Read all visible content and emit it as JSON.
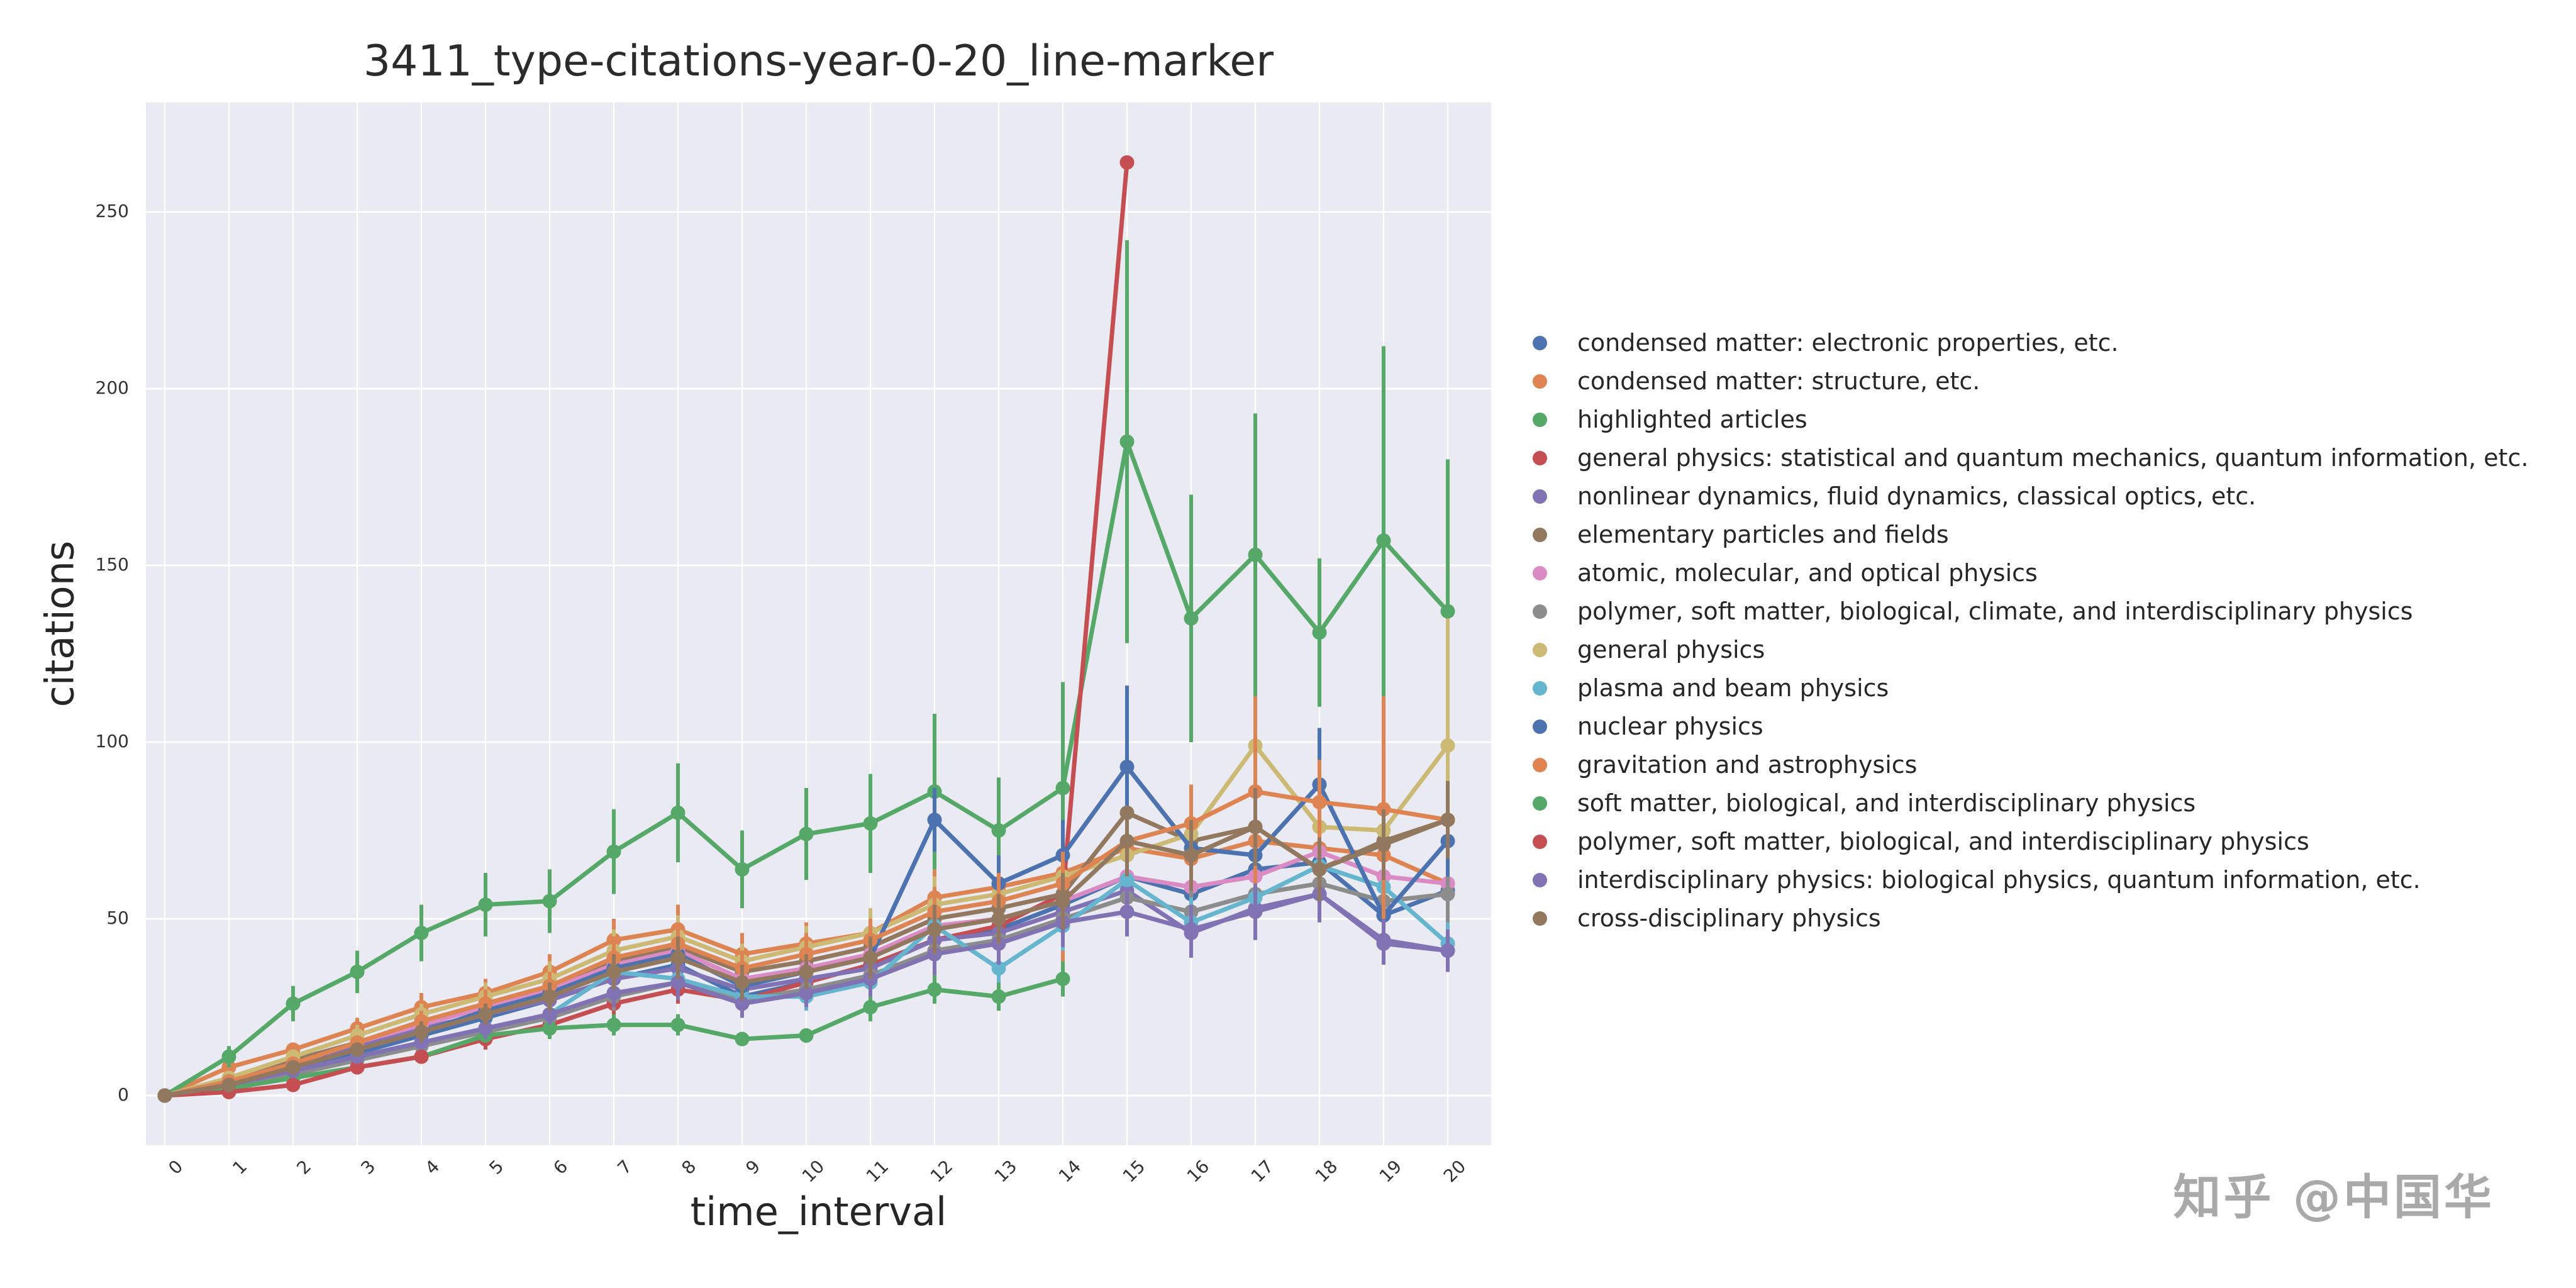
{
  "chart_data": {
    "type": "line",
    "title": "3411_type-citations-year-0-20_line-marker",
    "xlabel": "time_interval",
    "ylabel": "citations",
    "x": [
      0,
      1,
      2,
      3,
      4,
      5,
      6,
      7,
      8,
      9,
      10,
      11,
      12,
      13,
      14,
      15,
      16,
      17,
      18,
      19,
      20
    ],
    "xticks": [
      "0",
      "1",
      "2",
      "3",
      "4",
      "5",
      "6",
      "7",
      "8",
      "9",
      "10",
      "11",
      "12",
      "13",
      "14",
      "15",
      "16",
      "17",
      "18",
      "19",
      "20"
    ],
    "yticks": [
      0,
      50,
      100,
      150,
      200,
      250
    ],
    "ylim": [
      -14,
      281
    ],
    "xlim": [
      -0.3,
      20.7
    ],
    "grid": true,
    "errorbars": true,
    "marker": "circle",
    "legend_position": "right-outside",
    "background_color": "#eaeaf2",
    "grid_color": "#ffffff",
    "text_color": "#262626",
    "series": [
      {
        "label": "condensed matter: electronic properties, etc.",
        "color": "#4C72B0",
        "values": [
          0,
          3,
          7,
          12,
          17,
          22,
          27,
          33,
          37,
          28,
          32,
          37,
          44,
          47,
          54,
          62,
          57,
          64,
          66,
          51,
          58
        ],
        "errors": [
          0,
          1,
          2,
          2,
          3,
          3,
          4,
          5,
          5,
          4,
          5,
          5,
          6,
          7,
          8,
          9,
          8,
          9,
          10,
          8,
          9
        ]
      },
      {
        "label": "condensed matter: structure, etc.",
        "color": "#DD8452",
        "values": [
          0,
          8,
          13,
          19,
          25,
          29,
          35,
          44,
          47,
          40,
          43,
          46,
          56,
          59,
          63,
          70,
          67,
          72,
          70,
          68,
          60
        ],
        "errors": [
          0,
          2,
          2,
          3,
          4,
          4,
          5,
          6,
          7,
          6,
          6,
          7,
          8,
          9,
          26,
          20,
          10,
          11,
          10,
          10,
          20
        ]
      },
      {
        "label": "highlighted articles",
        "color": "#55A868",
        "values": [
          0,
          11,
          26,
          35,
          46,
          54,
          55,
          69,
          80,
          64,
          74,
          77,
          86,
          75,
          87,
          185,
          135,
          153,
          131,
          157,
          137
        ],
        "errors": [
          0,
          3,
          5,
          6,
          8,
          9,
          9,
          12,
          14,
          11,
          13,
          14,
          22,
          15,
          30,
          57,
          35,
          40,
          21,
          55,
          43
        ]
      },
      {
        "label": "general physics: statistical and quantum mechanics, quantum information, etc.",
        "color": "#C44E52",
        "values": [
          0,
          2,
          5,
          8,
          11,
          16,
          20,
          26,
          30,
          27,
          32,
          37,
          44,
          48,
          57,
          264
        ],
        "errors": [
          0,
          1,
          1,
          2,
          2,
          3,
          3,
          4,
          4,
          4,
          5,
          5,
          6,
          7,
          8,
          0
        ]
      },
      {
        "label": "nonlinear dynamics, fluid dynamics, classical optics, etc.",
        "color": "#8172B3",
        "values": [
          0,
          4,
          9,
          14,
          19,
          23,
          27,
          33,
          36,
          30,
          33,
          36,
          44,
          46,
          52,
          58,
          46,
          53,
          57,
          43,
          41
        ],
        "errors": [
          0,
          1,
          2,
          2,
          3,
          3,
          4,
          5,
          5,
          4,
          5,
          5,
          6,
          7,
          8,
          8,
          7,
          8,
          8,
          6,
          6
        ]
      },
      {
        "label": "elementary particles and fields",
        "color": "#937860",
        "values": [
          0,
          4,
          10,
          15,
          21,
          26,
          31,
          38,
          42,
          35,
          38,
          42,
          50,
          53,
          57,
          80,
          72,
          76,
          64,
          72,
          78
        ],
        "errors": [
          0,
          1,
          2,
          2,
          3,
          4,
          4,
          5,
          6,
          5,
          5,
          6,
          7,
          8,
          8,
          11,
          10,
          11,
          9,
          10,
          11
        ]
      },
      {
        "label": "atomic, molecular, and optical physics",
        "color": "#DA8BC3",
        "values": [
          0,
          4,
          9,
          15,
          20,
          25,
          30,
          37,
          41,
          33,
          36,
          40,
          48,
          50,
          55,
          62,
          59,
          62,
          69,
          62,
          60
        ],
        "errors": [
          0,
          1,
          2,
          2,
          3,
          4,
          4,
          5,
          6,
          5,
          5,
          6,
          7,
          7,
          8,
          9,
          8,
          9,
          10,
          9,
          9
        ]
      },
      {
        "label": "polymer, soft matter, biological, climate, and interdisciplinary physics",
        "color": "#8C8C8C",
        "values": [
          0,
          3,
          6,
          10,
          14,
          18,
          22,
          28,
          32,
          27,
          30,
          34,
          41,
          44,
          50,
          56,
          52,
          57,
          60,
          55,
          57
        ],
        "errors": [
          0,
          1,
          1,
          2,
          2,
          3,
          3,
          4,
          5,
          4,
          4,
          5,
          6,
          6,
          7,
          8,
          7,
          8,
          9,
          8,
          8
        ]
      },
      {
        "label": "general physics",
        "color": "#CCB974",
        "values": [
          0,
          5,
          11,
          17,
          23,
          28,
          33,
          41,
          45,
          38,
          42,
          46,
          54,
          57,
          62,
          68,
          74,
          99,
          76,
          75,
          99
        ],
        "errors": [
          0,
          1,
          2,
          3,
          3,
          4,
          5,
          6,
          6,
          5,
          6,
          7,
          8,
          8,
          9,
          10,
          11,
          14,
          11,
          11,
          36
        ]
      },
      {
        "label": "plasma and beam physics",
        "color": "#64B5CD",
        "values": [
          0,
          3,
          7,
          11,
          15,
          19,
          23,
          35,
          33,
          28,
          28,
          32,
          48,
          36,
          48,
          61,
          49,
          56,
          65,
          59,
          43
        ],
        "errors": [
          0,
          1,
          1,
          2,
          2,
          3,
          3,
          5,
          5,
          4,
          4,
          5,
          7,
          5,
          7,
          9,
          7,
          8,
          9,
          8,
          6
        ]
      },
      {
        "label": "nuclear physics",
        "color": "#4C72B0",
        "values": [
          0,
          4,
          8,
          13,
          18,
          24,
          29,
          36,
          40,
          31,
          35,
          39,
          78,
          60,
          68,
          93,
          70,
          68,
          88,
          51,
          72
        ],
        "errors": [
          0,
          1,
          1,
          2,
          3,
          3,
          4,
          5,
          6,
          4,
          5,
          6,
          9,
          8,
          10,
          23,
          10,
          10,
          16,
          7,
          10
        ]
      },
      {
        "label": "gravitation and astrophysics",
        "color": "#DD8452",
        "values": [
          0,
          4,
          9,
          15,
          21,
          26,
          31,
          39,
          43,
          36,
          40,
          44,
          52,
          55,
          60,
          72,
          77,
          86,
          83,
          81,
          78
        ],
        "errors": [
          0,
          1,
          2,
          2,
          3,
          4,
          4,
          6,
          6,
          5,
          6,
          6,
          7,
          8,
          9,
          10,
          11,
          27,
          12,
          32,
          11
        ]
      },
      {
        "label": "soft matter, biological, and interdisciplinary physics",
        "color": "#55A868",
        "values": [
          0,
          2,
          5,
          8,
          11,
          17,
          19,
          20,
          20,
          16,
          17,
          25,
          30,
          28,
          33
        ],
        "errors": [
          0,
          1,
          1,
          1,
          2,
          2,
          3,
          3,
          3,
          2,
          2,
          4,
          4,
          4,
          5
        ]
      },
      {
        "label": "polymer, soft matter, biological, and interdisciplinary physics",
        "color": "#C44E52",
        "values": [
          0,
          1,
          3,
          8,
          11
        ],
        "errors": [
          0,
          0,
          1,
          1,
          2
        ]
      },
      {
        "label": "interdisciplinary physics: biological physics, quantum information, etc.",
        "color": "#8172B3",
        "values": [
          0,
          3,
          7,
          11,
          15,
          19,
          23,
          29,
          32,
          26,
          29,
          33,
          40,
          43,
          49,
          52,
          47,
          52,
          57,
          44,
          41
        ],
        "errors": [
          0,
          1,
          1,
          2,
          2,
          3,
          3,
          4,
          5,
          4,
          4,
          5,
          6,
          6,
          7,
          7,
          7,
          8,
          8,
          6,
          6
        ]
      },
      {
        "label": "cross-disciplinary physics",
        "color": "#937860",
        "values": [
          0,
          3,
          8,
          13,
          18,
          23,
          28,
          35,
          39,
          32,
          35,
          39,
          47,
          50,
          55,
          72,
          68,
          76,
          64,
          71,
          78
        ],
        "errors": [
          0,
          1,
          1,
          2,
          3,
          3,
          4,
          5,
          6,
          5,
          5,
          6,
          7,
          7,
          8,
          10,
          10,
          11,
          9,
          10,
          11
        ]
      }
    ]
  },
  "watermark": {
    "text": "知乎 @中国华"
  }
}
